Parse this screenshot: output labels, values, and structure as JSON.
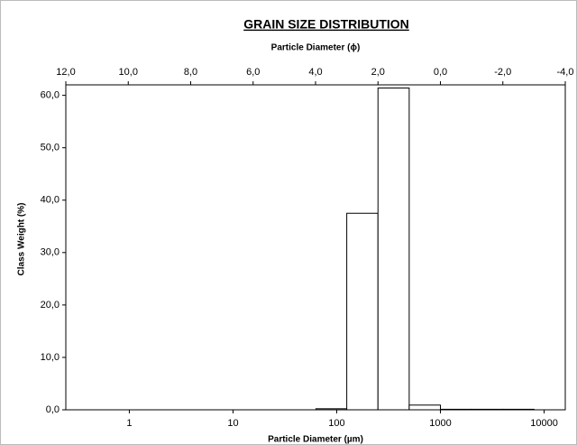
{
  "chart_data": {
    "type": "histogram",
    "title": "GRAIN SIZE DISTRIBUTION",
    "x2_label": "Particle Diameter (ϕ)",
    "xlabel": "Particle Diameter (µm)",
    "ylabel": "Class Weight (%)",
    "bins": [
      63,
      125,
      250,
      500,
      1000,
      2000,
      4000,
      8000
    ],
    "values": [
      0.2,
      37.5,
      61.4,
      0.9,
      0.1,
      0.1,
      0.1
    ],
    "color": "#ffffff",
    "edge_color": "#000000",
    "xscale": "log",
    "xlim": [
      0.244140625,
      16000
    ],
    "xticks": [
      1,
      10,
      100,
      1000,
      10000
    ],
    "x2lim": [
      12,
      -4
    ],
    "x2ticks": [
      {
        "value": 12,
        "label": "12,0"
      },
      {
        "value": 10,
        "label": "10,0"
      },
      {
        "value": 8,
        "label": "8,0"
      },
      {
        "value": 6,
        "label": "6,0"
      },
      {
        "value": 4,
        "label": "4,0"
      },
      {
        "value": 2,
        "label": "2,0"
      },
      {
        "value": 0,
        "label": "0,0"
      },
      {
        "value": -2,
        "label": "-2,0"
      },
      {
        "value": -4,
        "label": "-4,0"
      }
    ],
    "ylim": [
      0,
      62
    ],
    "yticks": [
      {
        "value": 0,
        "label": "0,0"
      },
      {
        "value": 10,
        "label": "10,0"
      },
      {
        "value": 20,
        "label": "20,0"
      },
      {
        "value": 30,
        "label": "30,0"
      },
      {
        "value": 40,
        "label": "40,0"
      },
      {
        "value": 50,
        "label": "50,0"
      },
      {
        "value": 60,
        "label": "60,0"
      }
    ],
    "grid": false
  }
}
